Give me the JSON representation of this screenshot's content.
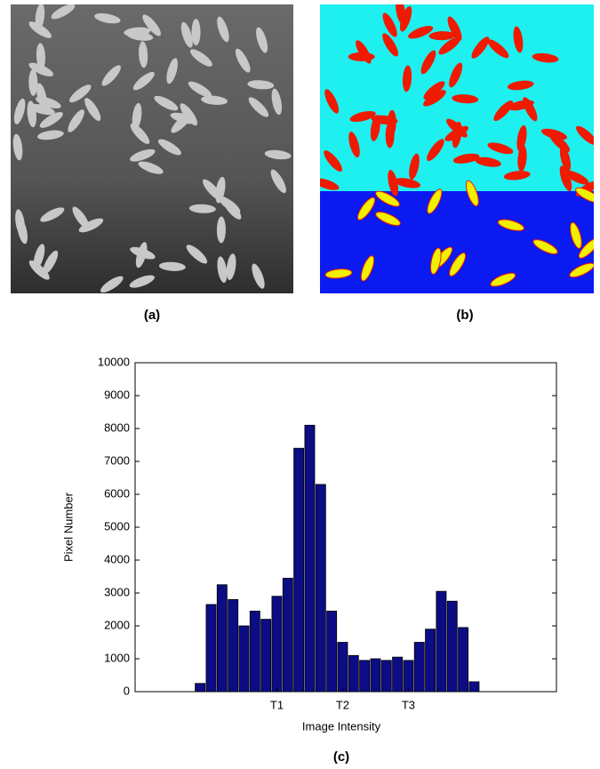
{
  "panels": [
    {
      "label": "(a)"
    },
    {
      "label": "(b)"
    }
  ],
  "chart_data": {
    "type": "bar",
    "caption": "(c)",
    "xlabel": "Image Intensity",
    "ylabel": "Pixel Number",
    "categories": [
      null,
      null,
      null,
      null,
      null,
      null,
      null,
      "T1",
      null,
      null,
      null,
      null,
      null,
      "T2",
      null,
      null,
      null,
      null,
      null,
      "T3",
      null,
      null,
      null,
      null,
      null,
      null
    ],
    "values": [
      250,
      2650,
      3250,
      2800,
      2000,
      2450,
      2200,
      2900,
      3450,
      7400,
      8100,
      6300,
      2450,
      1500,
      1100,
      950,
      1000,
      950,
      1050,
      950,
      1500,
      1900,
      3050,
      2750,
      1950,
      300
    ],
    "color": "#0c0c84",
    "ylim": [
      0,
      10000
    ],
    "yticks": [
      0,
      1000,
      2000,
      3000,
      4000,
      5000,
      6000,
      7000,
      8000,
      9000,
      10000
    ]
  }
}
